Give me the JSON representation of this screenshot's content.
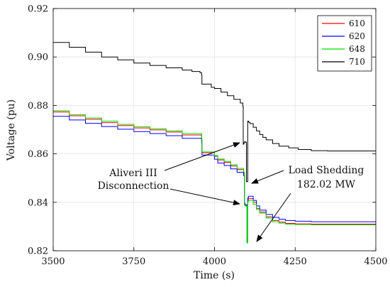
{
  "chart_data": {
    "type": "line",
    "xlabel": "Time (s)",
    "ylabel": "Voltage (pu)",
    "xlim": [
      3500,
      4500
    ],
    "ylim": [
      0.82,
      0.92
    ],
    "xticks": [
      3500,
      3750,
      4000,
      4250,
      4500
    ],
    "yticks": [
      0.82,
      0.84,
      0.86,
      0.88,
      0.9,
      0.92
    ],
    "xtick_labels": [
      "3500",
      "3750",
      "4000",
      "4250",
      "4500"
    ],
    "ytick_labels": [
      "0.82",
      "0.84",
      "0.86",
      "0.88",
      "0.90",
      "0.92"
    ],
    "grid": true,
    "legend_position": "top-right",
    "series": [
      {
        "name": "610",
        "color": "#ff0000",
        "x": [
          3500,
          3550,
          3600,
          3650,
          3700,
          3750,
          3800,
          3850,
          3900,
          3960,
          3961,
          4000,
          4010,
          4030,
          4050,
          4070,
          4090,
          4093,
          4095,
          4100,
          4101,
          4103,
          4105,
          4110,
          4120,
          4130,
          4140,
          4160,
          4180,
          4200,
          4220,
          4250,
          4300,
          4350,
          4400,
          4450,
          4500
        ],
        "y": [
          0.8773,
          0.8757,
          0.8743,
          0.8729,
          0.8717,
          0.8707,
          0.8699,
          0.869,
          0.8678,
          0.866,
          0.8605,
          0.859,
          0.8575,
          0.8565,
          0.855,
          0.8535,
          0.852,
          0.839,
          0.8385,
          0.8245,
          0.8243,
          0.841,
          0.8415,
          0.8415,
          0.84,
          0.8375,
          0.836,
          0.834,
          0.8325,
          0.8318,
          0.8313,
          0.8311,
          0.831,
          0.831,
          0.831,
          0.831,
          0.831
        ]
      },
      {
        "name": "620",
        "color": "#0000ff",
        "x": [
          3500,
          3550,
          3600,
          3650,
          3700,
          3750,
          3800,
          3850,
          3900,
          3960,
          3961,
          4000,
          4010,
          4030,
          4050,
          4070,
          4090,
          4093,
          4095,
          4100,
          4101,
          4103,
          4105,
          4110,
          4120,
          4130,
          4140,
          4160,
          4180,
          4200,
          4220,
          4250,
          4300,
          4350,
          4400,
          4450,
          4500
        ],
        "y": [
          0.8755,
          0.874,
          0.8726,
          0.8713,
          0.8702,
          0.8692,
          0.8684,
          0.8675,
          0.8664,
          0.8645,
          0.8595,
          0.8578,
          0.8562,
          0.8552,
          0.8538,
          0.8524,
          0.851,
          0.8395,
          0.839,
          0.8235,
          0.8233,
          0.8418,
          0.8425,
          0.8425,
          0.8408,
          0.8385,
          0.8368,
          0.835,
          0.8338,
          0.833,
          0.8325,
          0.8322,
          0.832,
          0.832,
          0.832,
          0.832,
          0.832
        ]
      },
      {
        "name": "648",
        "color": "#00e000",
        "x": [
          3500,
          3550,
          3600,
          3650,
          3700,
          3750,
          3800,
          3850,
          3900,
          3960,
          3961,
          4000,
          4010,
          4030,
          4050,
          4070,
          4090,
          4093,
          4095,
          4100,
          4101,
          4103,
          4105,
          4110,
          4120,
          4130,
          4140,
          4160,
          4180,
          4200,
          4220,
          4250,
          4300,
          4350,
          4400,
          4450,
          4500
        ],
        "y": [
          0.8778,
          0.8762,
          0.8748,
          0.8735,
          0.8722,
          0.8712,
          0.8704,
          0.8695,
          0.8684,
          0.8666,
          0.8608,
          0.8593,
          0.8579,
          0.8569,
          0.8555,
          0.854,
          0.8525,
          0.8388,
          0.8384,
          0.8235,
          0.8233,
          0.8402,
          0.8408,
          0.8408,
          0.8392,
          0.837,
          0.8355,
          0.8335,
          0.832,
          0.8314,
          0.831,
          0.8308,
          0.8307,
          0.8307,
          0.8307,
          0.8307,
          0.8307
        ]
      },
      {
        "name": "710",
        "color": "#000000",
        "x": [
          3500,
          3550,
          3600,
          3650,
          3700,
          3750,
          3800,
          3850,
          3900,
          3930,
          3955,
          3960,
          3961,
          3990,
          4000,
          4020,
          4040,
          4060,
          4080,
          4088,
          4089,
          4091,
          4093,
          4096,
          4099,
          4101,
          4103,
          4106,
          4110,
          4120,
          4130,
          4140,
          4150,
          4160,
          4180,
          4200,
          4230,
          4260,
          4300,
          4350,
          4400,
          4450,
          4500
        ],
        "y": [
          0.906,
          0.904,
          0.902,
          0.9,
          0.8988,
          0.8975,
          0.8965,
          0.8955,
          0.8946,
          0.894,
          0.8935,
          0.8925,
          0.8888,
          0.8875,
          0.887,
          0.8855,
          0.884,
          0.8825,
          0.881,
          0.8795,
          0.864,
          0.8645,
          0.865,
          0.8648,
          0.8485,
          0.8485,
          0.8735,
          0.873,
          0.8725,
          0.871,
          0.8695,
          0.868,
          0.8668,
          0.8658,
          0.8643,
          0.8632,
          0.8625,
          0.8618,
          0.8613,
          0.8612,
          0.8612,
          0.8612,
          0.8612
        ]
      }
    ],
    "annotations": [
      {
        "lines": [
          "Aliveri III",
          "Disconnection"
        ]
      },
      {
        "lines": [
          "Load Shedding",
          "182.02 MW"
        ]
      }
    ]
  }
}
